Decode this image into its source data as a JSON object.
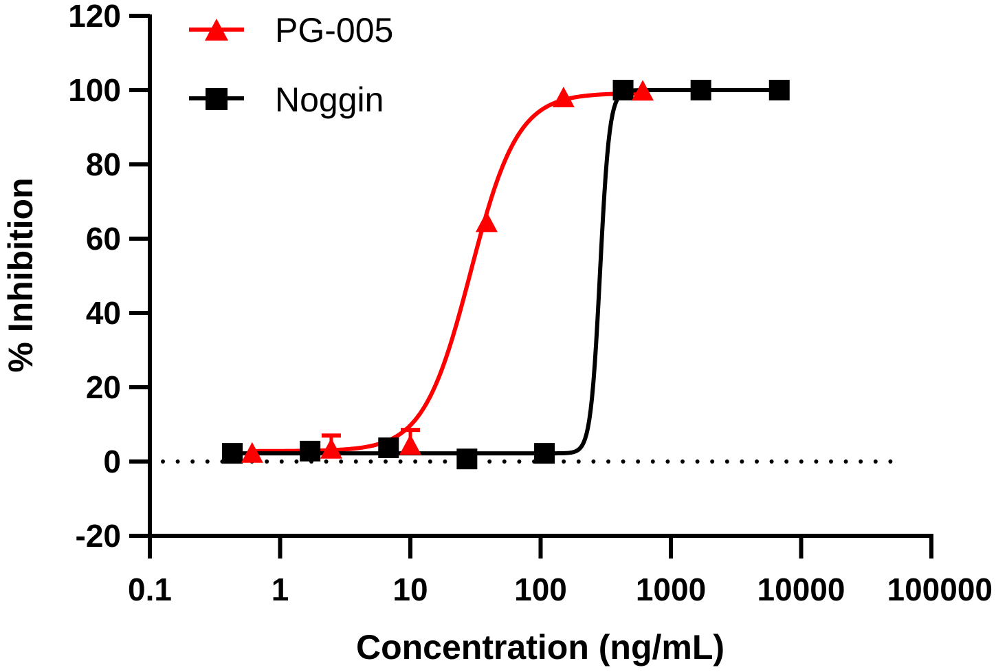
{
  "chart_data": {
    "type": "scatter",
    "title": "",
    "xlabel": "Concentration (ng/mL)",
    "ylabel": "% Inhibition",
    "xscale": "log",
    "xlim": [
      0.1,
      100000
    ],
    "ylim": [
      -20,
      120
    ],
    "x_ticks": [
      0.1,
      1,
      10,
      100,
      1000,
      10000,
      100000
    ],
    "x_tick_labels": [
      "0.1",
      "1",
      "10",
      "100",
      "1000",
      "10000",
      "100000"
    ],
    "y_ticks": [
      -20,
      0,
      20,
      40,
      60,
      80,
      100,
      120
    ],
    "y_tick_labels": [
      "-20",
      "0",
      "20",
      "40",
      "60",
      "80",
      "100",
      "120"
    ],
    "reference_line": {
      "y": 0,
      "style": "dotted",
      "x_end": 60000
    },
    "grid": false,
    "legend": {
      "position": "top-left"
    },
    "series": [
      {
        "name": "PG-005",
        "color": "#ff0000",
        "marker": "triangle",
        "x": [
          0.61,
          2.47,
          10,
          38.5,
          150,
          608
        ],
        "y": [
          1.9,
          3.0,
          4.0,
          64.0,
          97.6,
          99.4
        ],
        "error": [
          0,
          4.0,
          4.5,
          0,
          0,
          0
        ],
        "fit": {
          "model": "4PL",
          "bottom": 2.8,
          "top": 99.2,
          "ec50": 29,
          "hill": 2.4
        }
      },
      {
        "name": "Noggin",
        "color": "#000000",
        "marker": "square",
        "x": [
          0.43,
          1.7,
          6.8,
          27.2,
          107,
          430,
          1700,
          6800
        ],
        "y": [
          2.2,
          2.8,
          3.7,
          0.7,
          2.2,
          100,
          100,
          100
        ],
        "error": [
          0,
          0,
          0,
          0,
          0,
          0,
          0,
          0
        ],
        "fit": {
          "model": "4PL",
          "bottom": 2.2,
          "top": 100,
          "ec50": 286,
          "hill": 12
        }
      }
    ]
  }
}
